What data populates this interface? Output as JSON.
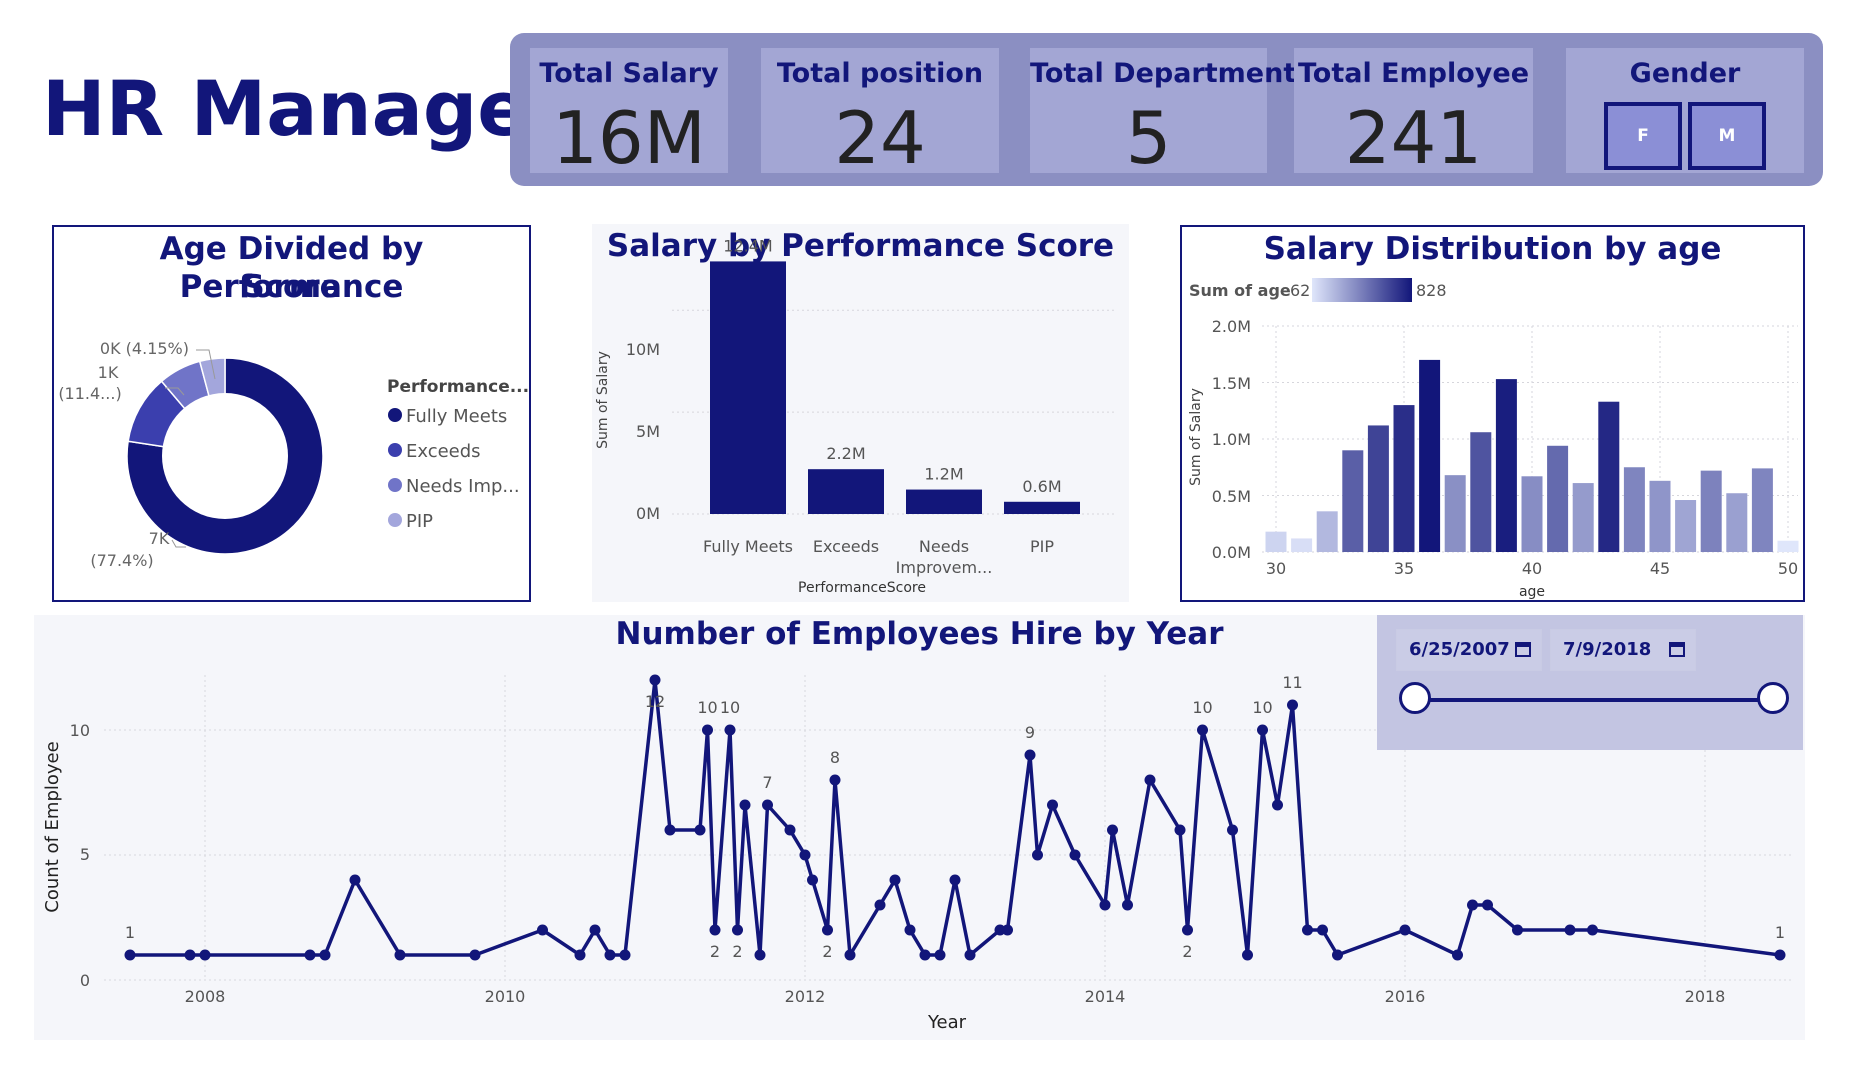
{
  "header": {
    "title": "HR Manager"
  },
  "kpis": [
    {
      "label": "Total Salary",
      "value": "16M"
    },
    {
      "label": "Total position",
      "value": "24"
    },
    {
      "label": "Total Department",
      "value": "5"
    },
    {
      "label": "Total Employee",
      "value": "241"
    }
  ],
  "gender": {
    "label": "Gender",
    "options": [
      "F",
      "M"
    ]
  },
  "colors": {
    "navy": "#12167a",
    "band": "#8b8fc2",
    "card": "#a3a6d4",
    "panel_bg": "#f5f6fa"
  },
  "donut": {
    "title_line1": "Age Divided by Performance",
    "title_line2": "Score",
    "legend_title": "Performance...",
    "legend": [
      "Fully Meets",
      "Exceeds",
      "Needs Imp...",
      "PIP"
    ],
    "labels": [
      {
        "line1": "7K",
        "line2": "(77.4%)"
      },
      {
        "line1": "1K",
        "line2": "(11.4...)"
      },
      {
        "line1": "0K (4.15%)",
        "line2": ""
      }
    ]
  },
  "bar_chart": {
    "title": "Salary by Performance Score",
    "ylabel": "Sum of Salary",
    "xlabel": "PerformanceScore",
    "yticks": [
      "0M",
      "5M",
      "10M"
    ],
    "xlabels": [
      {
        "line1": "Fully Meets",
        "line2": ""
      },
      {
        "line1": "Exceeds",
        "line2": ""
      },
      {
        "line1": "Needs",
        "line2": "Improvem..."
      },
      {
        "line1": "PIP",
        "line2": ""
      }
    ],
    "data_labels": [
      "12.4M",
      "2.2M",
      "1.2M",
      "0.6M"
    ]
  },
  "age_chart": {
    "title": "Salary Distribution by age",
    "legend_label": "Sum of age",
    "legend_min": "62",
    "legend_max": "828",
    "ylabel": "Sum of Salary",
    "xlabel": "age",
    "yticks": [
      "0.0M",
      "0.5M",
      "1.0M",
      "1.5M",
      "2.0M"
    ],
    "xticks": [
      "30",
      "35",
      "40",
      "45",
      "50"
    ]
  },
  "line_chart": {
    "title": "Number of Employees Hire by Year",
    "ylabel": "Count of Employee",
    "xlabel": "Year",
    "yticks": [
      "0",
      "5",
      "10"
    ],
    "xticks": [
      "2008",
      "2010",
      "2012",
      "2014",
      "2016",
      "2018"
    ]
  },
  "date_slicer": {
    "start": "6/25/2007",
    "end": "7/9/2018"
  },
  "chart_data": [
    {
      "type": "pie",
      "categories": [
        "Fully Meets",
        "Exceeds",
        "Needs Imp...",
        "PIP"
      ],
      "values": [
        77.4,
        11.4,
        7.05,
        4.15
      ]
    },
    {
      "type": "bar",
      "title": "Salary by Performance Score",
      "categories": [
        "Fully Meets",
        "Exceeds",
        "Needs Improvem...",
        "PIP"
      ],
      "values": [
        12.4,
        2.2,
        1.2,
        0.6
      ],
      "ylabel": "Sum of Salary",
      "xlabel": "PerformanceScore",
      "ylim": [
        0,
        13.5
      ]
    },
    {
      "type": "bar",
      "title": "Salary Distribution by age",
      "x": [
        30,
        31,
        32,
        33,
        34,
        35,
        36,
        37,
        38,
        39,
        40,
        41,
        42,
        43,
        44,
        45,
        46,
        47,
        48,
        49,
        50
      ],
      "values": [
        0.18,
        0.12,
        0.36,
        0.9,
        1.12,
        1.3,
        1.7,
        0.68,
        1.06,
        1.53,
        0.67,
        0.94,
        0.61,
        1.33,
        0.75,
        0.63,
        0.46,
        0.72,
        0.52,
        0.74,
        0.1
      ],
      "color_values": [
        130,
        90,
        230,
        560,
        660,
        740,
        828,
        380,
        600,
        800,
        390,
        520,
        340,
        760,
        420,
        360,
        300,
        430,
        320,
        420,
        62
      ],
      "ylabel": "Sum of Salary",
      "xlabel": "age",
      "ylim": [
        0,
        2.0
      ]
    },
    {
      "type": "line",
      "title": "Number of Employees Hire by Year",
      "x": [
        2007.5,
        2007.9,
        2008.0,
        2008.7,
        2008.8,
        2009.0,
        2009.3,
        2009.8,
        2010.25,
        2010.5,
        2010.6,
        2010.7,
        2010.8,
        2011.0,
        2011.1,
        2011.3,
        2011.35,
        2011.4,
        2011.5,
        2011.55,
        2011.6,
        2011.7,
        2011.75,
        2011.9,
        2012.0,
        2012.05,
        2012.15,
        2012.2,
        2012.3,
        2012.5,
        2012.6,
        2012.7,
        2012.8,
        2012.9,
        2013.0,
        2013.1,
        2013.3,
        2013.35,
        2013.5,
        2013.55,
        2013.65,
        2013.8,
        2014.0,
        2014.05,
        2014.15,
        2014.3,
        2014.5,
        2014.55,
        2014.65,
        2014.85,
        2014.95,
        2015.05,
        2015.15,
        2015.25,
        2015.35,
        2015.45,
        2015.55,
        2016.0,
        2016.35,
        2016.45,
        2016.55,
        2016.75,
        2017.1,
        2017.25,
        2018.5
      ],
      "values": [
        1,
        1,
        1,
        1,
        1,
        4,
        1,
        1,
        2,
        1,
        2,
        1,
        1,
        12,
        6,
        6,
        10,
        2,
        10,
        2,
        7,
        1,
        7,
        6,
        5,
        4,
        2,
        8,
        1,
        3,
        4,
        2,
        1,
        1,
        4,
        1,
        2,
        2,
        9,
        5,
        7,
        5,
        3,
        6,
        3,
        8,
        6,
        2,
        10,
        6,
        1,
        10,
        7,
        11,
        2,
        2,
        1,
        2,
        1,
        3,
        3,
        2,
        2,
        2,
        1
      ],
      "xlabel": "Year",
      "ylabel": "Count of Employee",
      "ylim": [
        0,
        12
      ]
    }
  ]
}
